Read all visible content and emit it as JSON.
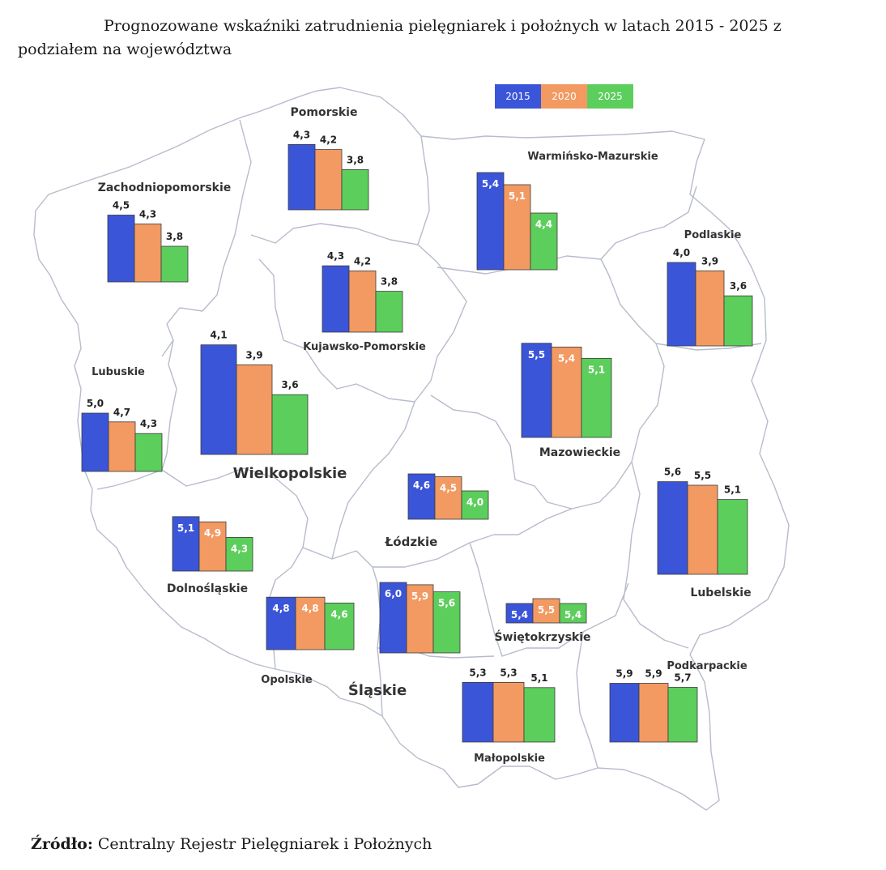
{
  "title": "Prognozowane wskaźniki zatrudnienia pielęgniarek i położnych w latach 2015 - 2025 z podziałem na województwa",
  "legend": [
    {
      "label": "2015",
      "color": "#3b55d9"
    },
    {
      "label": "2020",
      "color": "#f29a62"
    },
    {
      "label": "2025",
      "color": "#5cce5c"
    }
  ],
  "source": {
    "label": "Źródło:",
    "text": "Centralny Rejestr Pielęgniarek i Położnych"
  },
  "chart_data": {
    "type": "bar",
    "categories": [
      "2015",
      "2020",
      "2025"
    ],
    "regions": [
      {
        "name": "Pomorskie",
        "values": [
          4.3,
          4.2,
          3.8
        ],
        "labels": [
          "4,3",
          "4,2",
          "3,8"
        ]
      },
      {
        "name": "Zachodniopomorskie",
        "values": [
          4.5,
          4.3,
          3.8
        ],
        "labels": [
          "4,5",
          "4,3",
          "3,8"
        ]
      },
      {
        "name": "Warmińsko-Mazurskie",
        "values": [
          5.4,
          5.1,
          4.4
        ],
        "labels": [
          "5,4",
          "5,1",
          "4,4"
        ]
      },
      {
        "name": "Podlaskie",
        "values": [
          4.0,
          3.9,
          3.6
        ],
        "labels": [
          "4,0",
          "3,9",
          "3,6"
        ]
      },
      {
        "name": "Kujawsko-Pomorskie",
        "values": [
          4.3,
          4.2,
          3.8
        ],
        "labels": [
          "4,3",
          "4,2",
          "3,8"
        ]
      },
      {
        "name": "Wielkopolskie",
        "values": [
          4.1,
          3.9,
          3.6
        ],
        "labels": [
          "4,1",
          "3,9",
          "3,6"
        ]
      },
      {
        "name": "Lubuskie",
        "values": [
          5.0,
          4.7,
          4.3
        ],
        "labels": [
          "5,0",
          "4,7",
          "4,3"
        ]
      },
      {
        "name": "Mazowieckie",
        "values": [
          5.5,
          5.4,
          5.1
        ],
        "labels": [
          "5,5",
          "5,4",
          "5,1"
        ]
      },
      {
        "name": "Łódzkie",
        "values": [
          4.6,
          4.5,
          4.0
        ],
        "labels": [
          "4,6",
          "4,5",
          "4,0"
        ]
      },
      {
        "name": "Lubelskie",
        "values": [
          5.6,
          5.5,
          5.1
        ],
        "labels": [
          "5,6",
          "5,5",
          "5,1"
        ]
      },
      {
        "name": "Dolnośląskie",
        "values": [
          5.1,
          4.9,
          4.3
        ],
        "labels": [
          "5,1",
          "4,9",
          "4,3"
        ]
      },
      {
        "name": "Opolskie",
        "values": [
          4.8,
          4.8,
          4.6
        ],
        "labels": [
          "4,8",
          "4,8",
          "4,6"
        ]
      },
      {
        "name": "Śląskie",
        "values": [
          6.0,
          5.9,
          5.6
        ],
        "labels": [
          "6,0",
          "5,9",
          "5,6"
        ]
      },
      {
        "name": "Świętokrzyskie",
        "values": [
          5.4,
          5.5,
          5.4
        ],
        "labels": [
          "5,4",
          "5,5",
          "5,4"
        ]
      },
      {
        "name": "Małopolskie",
        "values": [
          5.3,
          5.3,
          5.1
        ],
        "labels": [
          "5,3",
          "5,3",
          "5,1"
        ]
      },
      {
        "name": "Podkarpackie",
        "values": [
          5.9,
          5.9,
          5.7
        ],
        "labels": [
          "5,9",
          "5,9",
          "5,7"
        ]
      }
    ]
  }
}
